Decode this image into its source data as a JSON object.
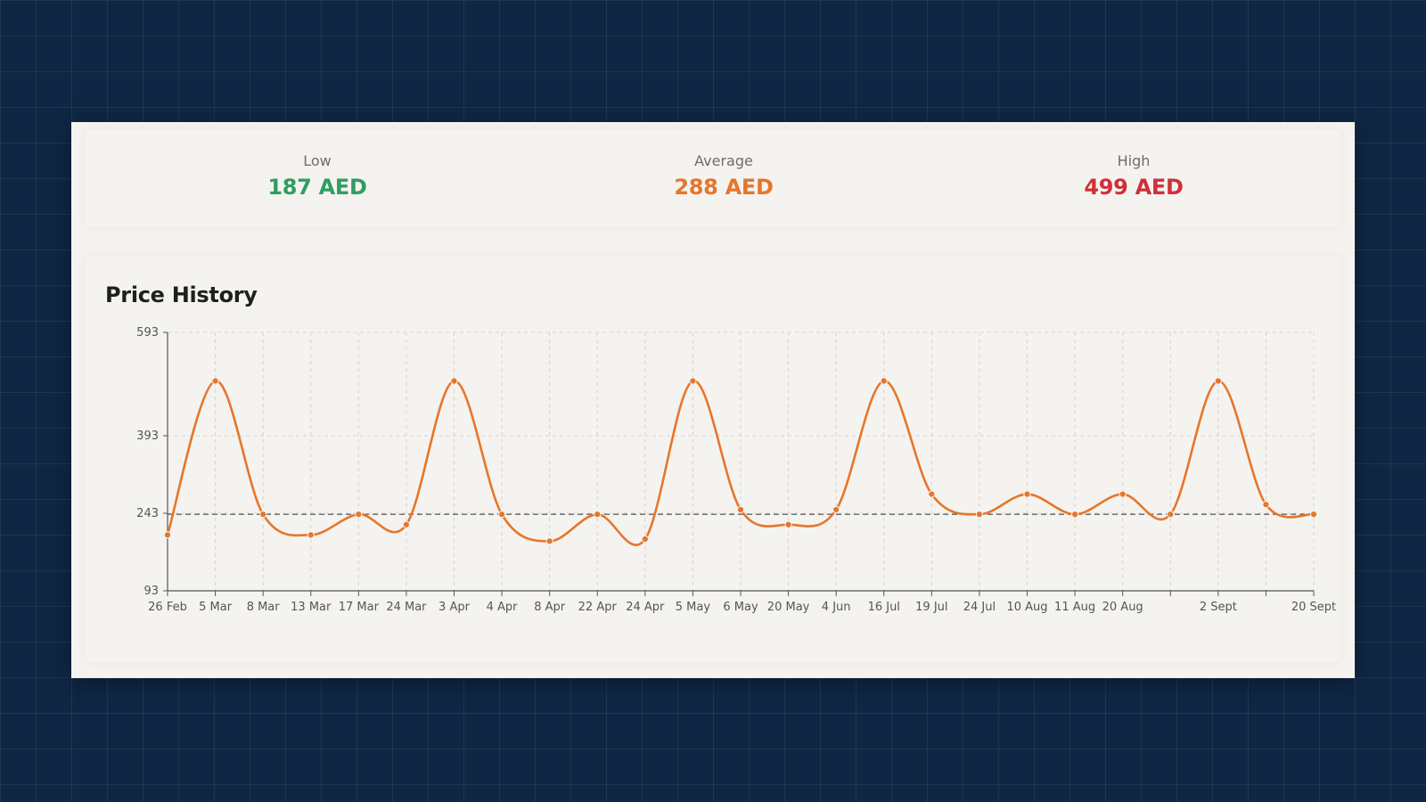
{
  "stats": {
    "low": {
      "label": "Low",
      "value": "187 AED",
      "color": "#2e9e62"
    },
    "average": {
      "label": "Average",
      "value": "288 AED",
      "color": "#e6762b"
    },
    "high": {
      "label": "High",
      "value": "499 AED",
      "color": "#d0303a"
    }
  },
  "chart_data": {
    "type": "line",
    "title": "Price History",
    "categories": [
      "26 Feb",
      "5 Mar",
      "8 Mar",
      "13 Mar",
      "17 Mar",
      "24 Mar",
      "3 Apr",
      "4 Apr",
      "8 Apr",
      "22 Apr",
      "24 Apr",
      "5 May",
      "6 May",
      "20 May",
      "4 Jun",
      "16 Jul",
      "19 Jul",
      "24 Jul",
      "10 Aug",
      "11 Aug",
      "20 Aug",
      "",
      "2 Sept",
      "",
      "20 Sept"
    ],
    "series": [
      {
        "values": [
          201,
          499,
          241,
          201,
          241,
          221,
          499,
          241,
          189,
          241,
          193,
          499,
          250,
          221,
          250,
          499,
          280,
          241,
          280,
          241,
          280,
          241,
          499,
          260,
          241
        ],
        "color": "#e6762b"
      }
    ],
    "reference_line": {
      "value": 241,
      "style": "dashed",
      "color": "#555555"
    },
    "y_ticks": [
      93,
      243,
      393,
      593
    ],
    "ylim": [
      93,
      593
    ],
    "grid": true
  }
}
